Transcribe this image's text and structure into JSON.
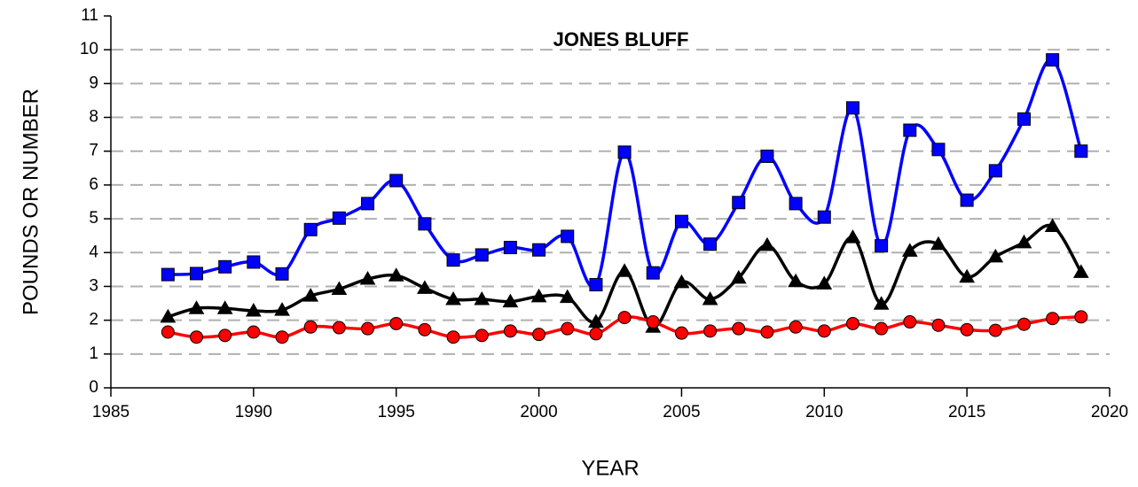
{
  "chart_data": {
    "type": "line",
    "title": "JONES BLUFF",
    "xlabel": "YEAR",
    "ylabel": "POUNDS OR NUMBER",
    "x": [
      1987,
      1988,
      1989,
      1990,
      1991,
      1992,
      1993,
      1994,
      1995,
      1996,
      1997,
      1998,
      1999,
      2000,
      2001,
      2002,
      2003,
      2004,
      2005,
      2006,
      2007,
      2008,
      2009,
      2010,
      2011,
      2012,
      2013,
      2014,
      2015,
      2016,
      2017,
      2018,
      2019
    ],
    "series": [
      {
        "color": "#0000ff",
        "marker": "square",
        "values": [
          3.35,
          3.38,
          3.58,
          3.72,
          3.37,
          4.68,
          5.02,
          5.45,
          6.13,
          4.85,
          3.78,
          3.93,
          4.15,
          4.08,
          4.48,
          3.05,
          6.97,
          3.4,
          4.92,
          4.25,
          5.48,
          6.85,
          5.45,
          5.05,
          8.28,
          4.2,
          7.62,
          7.05,
          5.55,
          6.42,
          7.95,
          9.7,
          7.0
        ]
      },
      {
        "color": "#000000",
        "marker": "triangle",
        "values": [
          2.1,
          2.35,
          2.35,
          2.28,
          2.3,
          2.72,
          2.92,
          3.22,
          3.32,
          2.95,
          2.62,
          2.62,
          2.55,
          2.7,
          2.68,
          1.95,
          3.45,
          1.8,
          3.12,
          2.62,
          3.25,
          4.22,
          3.15,
          3.08,
          4.45,
          2.48,
          4.05,
          4.25,
          3.28,
          3.88,
          4.3,
          4.78,
          3.42
        ]
      },
      {
        "color": "#ff0000",
        "marker": "circle",
        "values": [
          1.65,
          1.5,
          1.55,
          1.65,
          1.5,
          1.8,
          1.78,
          1.75,
          1.9,
          1.72,
          1.5,
          1.55,
          1.68,
          1.58,
          1.75,
          1.6,
          2.08,
          1.95,
          1.62,
          1.68,
          1.75,
          1.65,
          1.8,
          1.68,
          1.9,
          1.75,
          1.95,
          1.85,
          1.72,
          1.7,
          1.88,
          2.05,
          2.1
        ]
      }
    ],
    "xlim": [
      1985,
      2020
    ],
    "xticks": [
      1985,
      1990,
      1995,
      2000,
      2005,
      2010,
      2015,
      2020
    ],
    "ylim": [
      0,
      11
    ],
    "yticks": [
      0,
      1,
      2,
      3,
      4,
      5,
      6,
      7,
      8,
      9,
      10,
      11
    ],
    "grid": true,
    "smooth": true
  }
}
